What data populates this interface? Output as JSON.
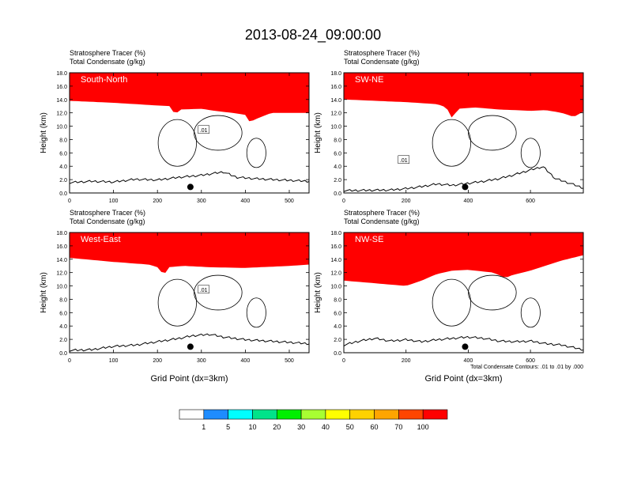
{
  "figure_title": "2013-08-24_09:00:00",
  "chart_data": [
    {
      "type": "heatmap",
      "panel_label": "South-North",
      "title_lines": [
        "Stratosphere Tracer   (%)",
        "Total Condensate   (g/kg)"
      ],
      "xlabel": "",
      "ylabel": "Height (km)",
      "xlim": [
        0,
        545
      ],
      "ylim": [
        0,
        18
      ],
      "xticks": [
        0,
        100,
        200,
        300,
        400,
        500
      ],
      "yticks": [
        0,
        2,
        4,
        6,
        8,
        10,
        12,
        14,
        16,
        18
      ],
      "ytick_labels": [
        "0.0",
        "2.0",
        "4.0",
        "6.0",
        "8.0",
        "10.0",
        "12.0",
        "14.0",
        "16.0",
        "18.0"
      ],
      "contour_label": ".01",
      "marker_x": 275,
      "tropopause": [
        [
          0,
          13.8
        ],
        [
          100,
          13.5
        ],
        [
          200,
          13.1
        ],
        [
          230,
          13.0
        ],
        [
          240,
          11.6
        ],
        [
          250,
          12.5
        ],
        [
          300,
          12.6
        ],
        [
          330,
          12.3
        ],
        [
          370,
          12.0
        ],
        [
          400,
          11.7
        ],
        [
          410,
          10.6
        ],
        [
          425,
          11.1
        ],
        [
          460,
          12.0
        ],
        [
          545,
          12.0
        ]
      ],
      "terrain": [
        [
          0,
          1.4
        ],
        [
          50,
          1.6
        ],
        [
          100,
          1.5
        ],
        [
          150,
          1.9
        ],
        [
          200,
          1.8
        ],
        [
          250,
          2.2
        ],
        [
          300,
          2.5
        ],
        [
          330,
          2.8
        ],
        [
          350,
          3.0
        ],
        [
          380,
          2.2
        ],
        [
          420,
          2.0
        ],
        [
          480,
          1.8
        ],
        [
          545,
          1.6
        ]
      ]
    },
    {
      "type": "heatmap",
      "panel_label": "SW-NE",
      "title_lines": [
        "Stratosphere Tracer   (%)",
        "Total Condensate   (g/kg)"
      ],
      "xlabel": "",
      "ylabel": "Height (km)",
      "xlim": [
        0,
        770
      ],
      "ylim": [
        0,
        18
      ],
      "xticks": [
        0,
        200,
        400,
        600
      ],
      "yticks": [
        0,
        2,
        4,
        6,
        8,
        10,
        12,
        14,
        16,
        18
      ],
      "ytick_labels": [
        "0.0",
        "2.0",
        "4.0",
        "6.0",
        "8.0",
        "10.0",
        "12.0",
        "14.0",
        "16.0",
        "18.0"
      ],
      "contour_label": ".01",
      "marker_x": 390,
      "tropopause": [
        [
          0,
          14.0
        ],
        [
          100,
          13.8
        ],
        [
          200,
          13.6
        ],
        [
          300,
          13.3
        ],
        [
          330,
          12.8
        ],
        [
          350,
          11.0
        ],
        [
          365,
          12.6
        ],
        [
          420,
          12.8
        ],
        [
          500,
          12.5
        ],
        [
          600,
          12.3
        ],
        [
          650,
          12.4
        ],
        [
          700,
          12.0
        ],
        [
          740,
          11.4
        ],
        [
          770,
          12.2
        ]
      ],
      "terrain": [
        [
          0,
          0.2
        ],
        [
          150,
          0.3
        ],
        [
          200,
          0.5
        ],
        [
          250,
          0.8
        ],
        [
          300,
          1.2
        ],
        [
          350,
          1.0
        ],
        [
          400,
          1.3
        ],
        [
          450,
          1.6
        ],
        [
          500,
          2.0
        ],
        [
          550,
          2.6
        ],
        [
          600,
          3.3
        ],
        [
          640,
          3.8
        ],
        [
          680,
          2.0
        ],
        [
          720,
          1.4
        ],
        [
          770,
          0.6
        ]
      ]
    },
    {
      "type": "heatmap",
      "panel_label": "West-East",
      "title_lines": [
        "Stratosphere Tracer   (%)",
        "Total Condensate   (g/kg)"
      ],
      "xlabel": "Grid Point (dx=3km)",
      "ylabel": "Height (km)",
      "xlim": [
        0,
        545
      ],
      "ylim": [
        0,
        18
      ],
      "xticks": [
        0,
        100,
        200,
        300,
        400,
        500
      ],
      "yticks": [
        0,
        2,
        4,
        6,
        8,
        10,
        12,
        14,
        16,
        18
      ],
      "ytick_labels": [
        "0.0",
        "2.0",
        "4.0",
        "6.0",
        "8.0",
        "10.0",
        "12.0",
        "14.0",
        "16.0",
        "18.0"
      ],
      "contour_label": ".01",
      "marker_x": 275,
      "tropopause": [
        [
          0,
          14.2
        ],
        [
          100,
          13.6
        ],
        [
          180,
          13.2
        ],
        [
          200,
          12.8
        ],
        [
          215,
          11.6
        ],
        [
          225,
          12.8
        ],
        [
          260,
          13.0
        ],
        [
          320,
          12.8
        ],
        [
          400,
          12.7
        ],
        [
          500,
          13.0
        ],
        [
          545,
          13.2
        ]
      ],
      "terrain": [
        [
          0,
          0.2
        ],
        [
          50,
          0.3
        ],
        [
          100,
          0.8
        ],
        [
          150,
          1.0
        ],
        [
          200,
          1.5
        ],
        [
          250,
          2.0
        ],
        [
          280,
          2.4
        ],
        [
          320,
          2.6
        ],
        [
          350,
          2.2
        ],
        [
          400,
          1.8
        ],
        [
          450,
          1.6
        ],
        [
          500,
          1.4
        ],
        [
          545,
          1.2
        ]
      ]
    },
    {
      "type": "heatmap",
      "panel_label": "NW-SE",
      "title_lines": [
        "Stratosphere Tracer   (%)",
        "Total Condensate   (g/kg)"
      ],
      "xlabel": "Grid Point (dx=3km)",
      "ylabel": "Height (km)",
      "xlim": [
        0,
        770
      ],
      "ylim": [
        0,
        18
      ],
      "xticks": [
        0,
        200,
        400,
        600
      ],
      "yticks": [
        0,
        2,
        4,
        6,
        8,
        10,
        12,
        14,
        16,
        18
      ],
      "ytick_labels": [
        "0.0",
        "2.0",
        "4.0",
        "6.0",
        "8.0",
        "10.0",
        "12.0",
        "14.0",
        "16.0",
        "18.0"
      ],
      "contour_label": "",
      "marker_x": 390,
      "footnote": "Total Condensate Contours: .01 to .01 by .000",
      "tropopause": [
        [
          0,
          10.8
        ],
        [
          50,
          10.6
        ],
        [
          100,
          10.4
        ],
        [
          150,
          10.2
        ],
        [
          200,
          10.0
        ],
        [
          250,
          10.8
        ],
        [
          300,
          11.8
        ],
        [
          350,
          12.3
        ],
        [
          400,
          12.4
        ],
        [
          480,
          12.0
        ],
        [
          520,
          11.2
        ],
        [
          540,
          11.6
        ],
        [
          600,
          12.3
        ],
        [
          700,
          13.8
        ],
        [
          770,
          14.6
        ]
      ],
      "terrain": [
        [
          0,
          1.0
        ],
        [
          50,
          1.6
        ],
        [
          100,
          2.0
        ],
        [
          150,
          1.6
        ],
        [
          200,
          1.8
        ],
        [
          250,
          1.5
        ],
        [
          300,
          1.8
        ],
        [
          350,
          2.0
        ],
        [
          400,
          2.2
        ],
        [
          450,
          2.0
        ],
        [
          500,
          1.6
        ],
        [
          550,
          1.5
        ],
        [
          600,
          1.6
        ],
        [
          650,
          1.2
        ],
        [
          700,
          1.0
        ],
        [
          770,
          0.3
        ]
      ]
    }
  ],
  "colorbar": {
    "colors": [
      "#ffffff",
      "#1e8cff",
      "#00ffff",
      "#00e38a",
      "#00ef00",
      "#a8ff32",
      "#ffff00",
      "#ffd200",
      "#ffa500",
      "#ff4500",
      "#ff0000"
    ],
    "labels": [
      "1",
      "5",
      "10",
      "20",
      "30",
      "40",
      "50",
      "60",
      "70",
      "100"
    ]
  }
}
